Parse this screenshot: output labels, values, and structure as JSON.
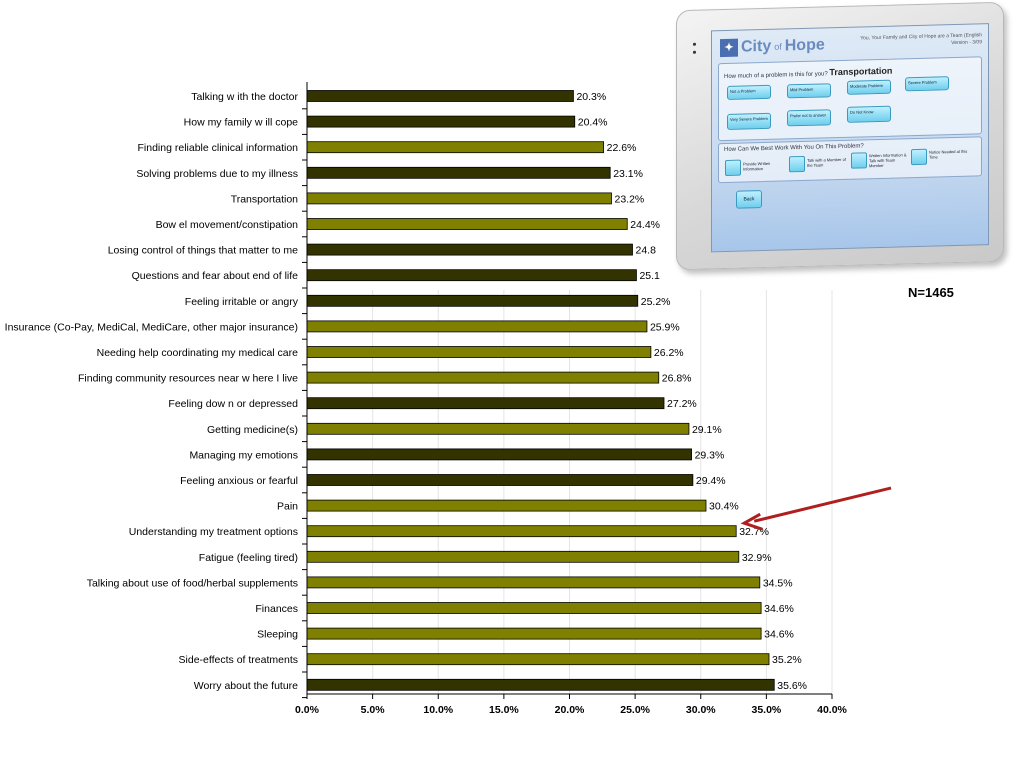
{
  "chart_data": {
    "type": "bar",
    "orientation": "horizontal",
    "categories": [
      "Talking w ith the doctor",
      "How  my family w ill cope",
      "Finding reliable clinical information",
      "Solving problems due to my illness",
      "Transportation",
      "Bow el movement/constipation",
      "Losing control of things that matter to me",
      "Questions and fear about end of life",
      "Feeling irritable or angry",
      "Insurance (Co-Pay, MediCal, MediCare, other major insurance)",
      "Needing help coordinating my medical care",
      "Finding community resources near w here I live",
      "Feeling dow n or depressed",
      "Getting medicine(s)",
      "Managing my emotions",
      "Feeling anxious or fearful",
      "Pain",
      "Understanding my treatment options",
      "Fatigue (feeling tired)",
      "Talking about use of food/herbal supplements",
      "Finances",
      "Sleeping",
      "Side-effects of treatments",
      "Worry about the future"
    ],
    "values": [
      20.3,
      20.4,
      22.6,
      23.1,
      23.2,
      24.4,
      24.8,
      25.1,
      25.2,
      25.9,
      26.2,
      26.8,
      27.2,
      29.1,
      29.3,
      29.4,
      30.4,
      32.7,
      32.9,
      34.5,
      34.6,
      34.6,
      35.2,
      35.6
    ],
    "value_labels": [
      "20.3%",
      "20.4%",
      "22.6%",
      "23.1%",
      "23.2%",
      "24.4%",
      "24.8",
      "25.1",
      "25.2%",
      "25.9%",
      "26.2%",
      "26.8%",
      "27.2%",
      "29.1%",
      "29.3%",
      "29.4%",
      "30.4%",
      "32.7%",
      "32.9%",
      "34.5%",
      "34.6%",
      "34.6%",
      "35.2%",
      "35.6%"
    ],
    "bar_groups": [
      "dark",
      "dark",
      "olive",
      "dark",
      "olive",
      "olive",
      "dark",
      "dark",
      "dark",
      "olive",
      "olive",
      "olive",
      "dark",
      "olive",
      "dark",
      "dark",
      "olive",
      "olive",
      "olive",
      "olive",
      "olive",
      "olive",
      "olive",
      "dark"
    ],
    "colors": {
      "dark": "#333300",
      "olive": "#808000",
      "arrow": "#b01e1e",
      "gridline": "#e4e4e4"
    },
    "xlim": [
      0,
      40
    ],
    "xticks": [
      "0.0%",
      "5.0%",
      "10.0%",
      "15.0%",
      "20.0%",
      "25.0%",
      "30.0%",
      "35.0%",
      "40.0%"
    ],
    "grid": true,
    "annotation": {
      "type": "arrow",
      "points_to_category": "Understanding my treatment options"
    }
  },
  "note": {
    "n_label": "N=1465"
  },
  "tablet": {
    "logo_text": "City",
    "logo_sub": "of",
    "logo_text2": "Hope",
    "header_line1": "You, Your Family and City of Hope are a Team (English",
    "header_line2": "Version - 3/09",
    "question": "How much of a problem is this for you?",
    "topic": "Transportation",
    "severity_buttons": [
      "Not a Problem",
      "Mild Problem",
      "Moderate Problem",
      "Severe Problem",
      "Very Severe Problem",
      "Prefer not to answer",
      "Do Not Know"
    ],
    "help_question": "How Can We Best Work With You On This Problem?",
    "help_options": [
      "Provide Written Information",
      "Talk with a Member of the Team",
      "Written Information & Talk with Team Member",
      "Notice Needed at this Time"
    ],
    "back_label": "Back"
  }
}
